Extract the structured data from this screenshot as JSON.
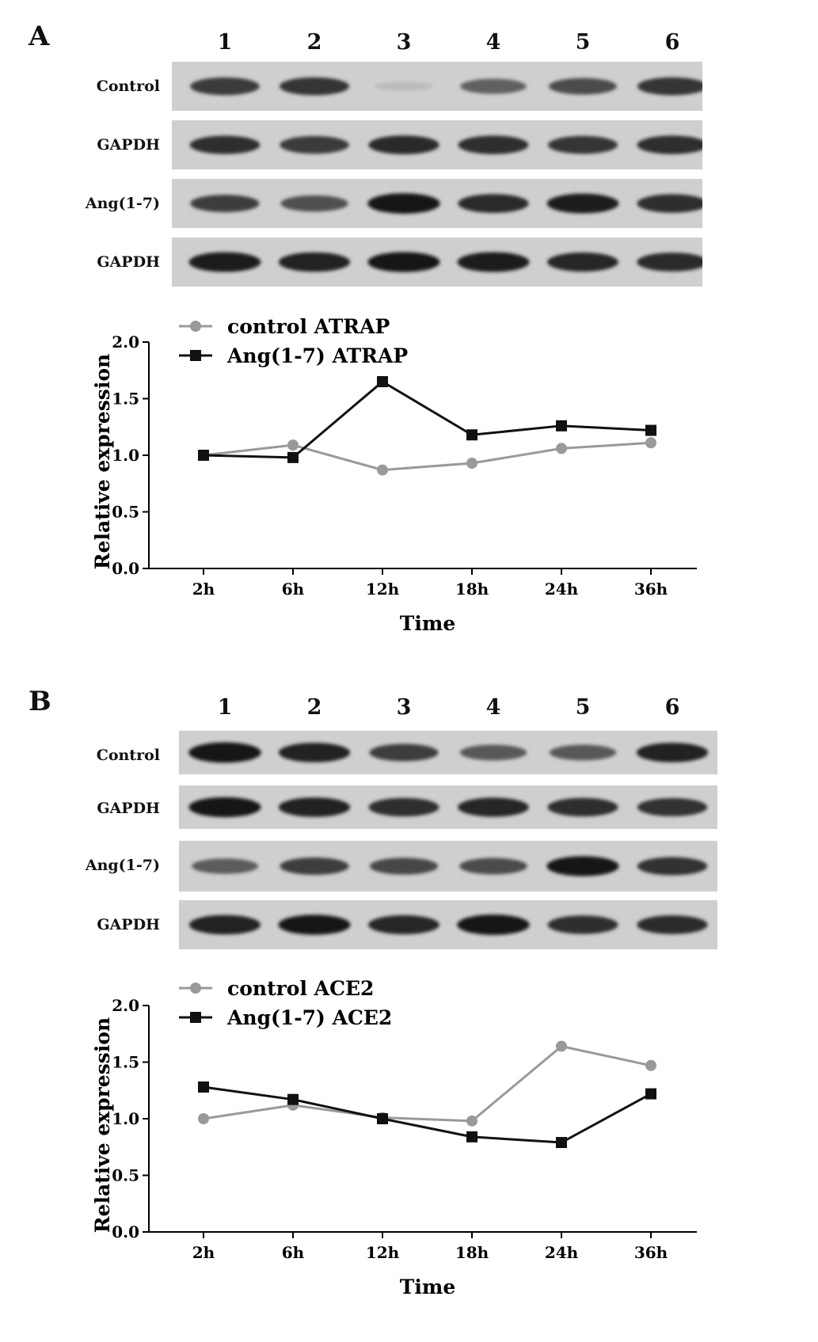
{
  "panels": [
    {
      "letter": "A",
      "lanes": [
        "1",
        "2",
        "3",
        "4",
        "5",
        "6"
      ],
      "blots": [
        {
          "label": "Control",
          "band_intensity": [
            0.8,
            0.82,
            0.2,
            0.62,
            0.72,
            0.82
          ]
        },
        {
          "label": "GAPDH",
          "band_intensity": [
            0.85,
            0.8,
            0.88,
            0.86,
            0.82,
            0.86
          ]
        },
        {
          "label": "Ang(1-7)",
          "band_intensity": [
            0.78,
            0.7,
            0.98,
            0.88,
            0.94,
            0.86
          ]
        },
        {
          "label": "GAPDH",
          "band_intensity": [
            0.95,
            0.92,
            0.96,
            0.95,
            0.9,
            0.88
          ]
        }
      ],
      "chart_data": {
        "type": "line",
        "xlabel": "Time",
        "ylabel": "Relative expression",
        "categories": [
          "2h",
          "6h",
          "12h",
          "18h",
          "24h",
          "36h"
        ],
        "ylim": [
          0,
          2.0
        ],
        "yticks": [
          "0.0",
          "0.5",
          "1.0",
          "1.5",
          "2.0"
        ],
        "legend_position": "top-left",
        "grid": false,
        "series": [
          {
            "name": "control ATRAP",
            "marker": "circle",
            "color": "#999999",
            "values": [
              1.0,
              1.09,
              0.87,
              0.93,
              1.06,
              1.11
            ]
          },
          {
            "name": "Ang(1-7) ATRAP",
            "marker": "square",
            "color": "#111111",
            "values": [
              1.0,
              0.98,
              1.65,
              1.18,
              1.26,
              1.22
            ]
          }
        ]
      }
    },
    {
      "letter": "B",
      "lanes": [
        "1",
        "2",
        "3",
        "4",
        "5",
        "6"
      ],
      "blots": [
        {
          "label": "Control",
          "band_intensity": [
            0.98,
            0.92,
            0.78,
            0.66,
            0.66,
            0.92
          ]
        },
        {
          "label": "GAPDH",
          "band_intensity": [
            0.96,
            0.92,
            0.86,
            0.9,
            0.86,
            0.84
          ]
        },
        {
          "label": "Ang(1-7)",
          "band_intensity": [
            0.64,
            0.78,
            0.74,
            0.72,
            0.96,
            0.84
          ]
        },
        {
          "label": "GAPDH",
          "band_intensity": [
            0.92,
            0.96,
            0.9,
            0.98,
            0.86,
            0.88
          ]
        }
      ],
      "chart_data": {
        "type": "line",
        "xlabel": "Time",
        "ylabel": "Relative expression",
        "categories": [
          "2h",
          "6h",
          "12h",
          "18h",
          "24h",
          "36h"
        ],
        "ylim": [
          0,
          2.0
        ],
        "yticks": [
          "0.0",
          "0.5",
          "1.0",
          "1.5",
          "2.0"
        ],
        "legend_position": "top-left",
        "grid": false,
        "series": [
          {
            "name": "control ACE2",
            "marker": "circle",
            "color": "#999999",
            "values": [
              1.0,
              1.12,
              1.01,
              0.98,
              1.64,
              1.47
            ]
          },
          {
            "name": "Ang(1-7) ACE2",
            "marker": "square",
            "color": "#111111",
            "values": [
              1.28,
              1.17,
              1.0,
              0.84,
              0.79,
              1.22
            ]
          }
        ]
      }
    }
  ]
}
